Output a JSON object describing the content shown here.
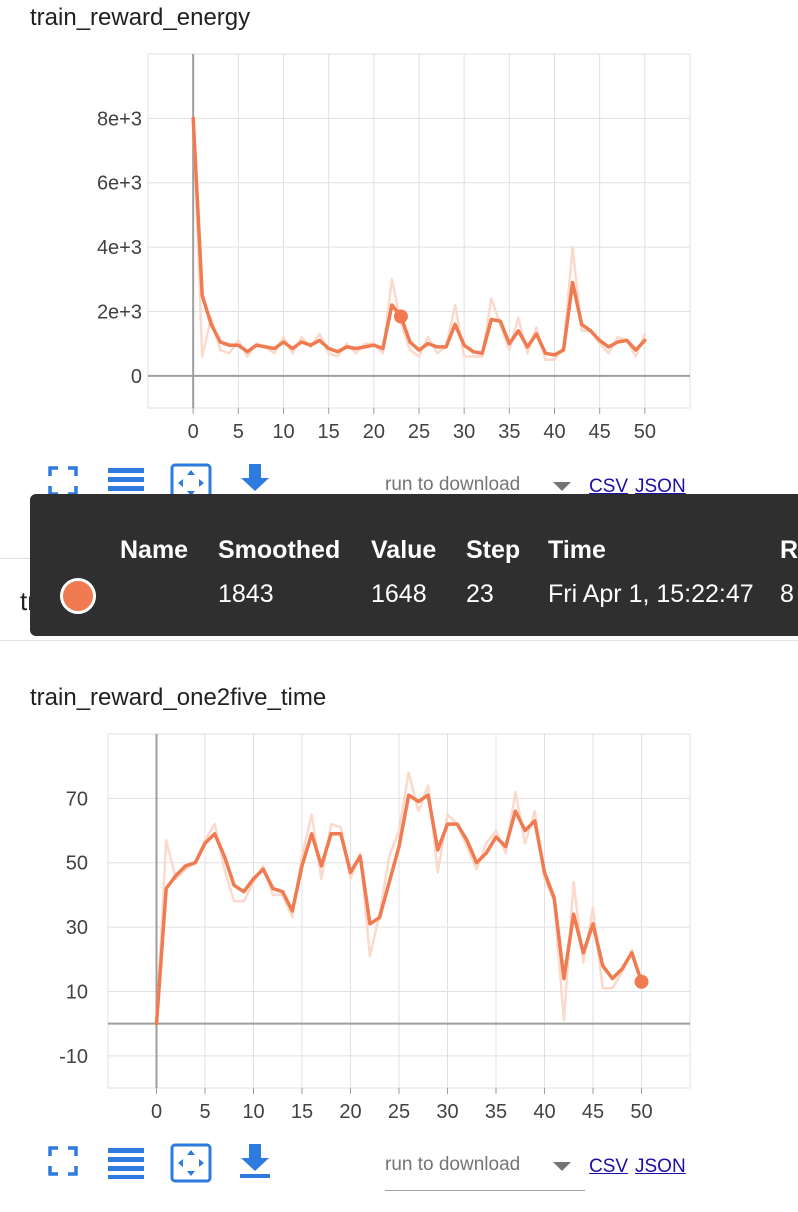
{
  "charts": [
    {
      "title": "train_reward_energy",
      "toolbar": {
        "download_placeholder": "run to download",
        "csv_label": "CSV",
        "json_label": "JSON"
      }
    },
    {
      "title": "train_reward_one2five_time",
      "toolbar": {
        "download_placeholder": "run to download",
        "csv_label": "CSV",
        "json_label": "JSON"
      }
    }
  ],
  "ghost_title": "train_reward_one2five_time",
  "tooltip": {
    "headers": {
      "name": "Name",
      "smoothed": "Smoothed",
      "value": "Value",
      "step": "Step",
      "time": "Time",
      "relative": "R"
    },
    "row": {
      "smoothed": "1843",
      "value": "1648",
      "step": "23",
      "time": "Fri Apr 1, 15:22:47",
      "relative": "8"
    }
  },
  "colors": {
    "series": "#f07b50",
    "raw": "#fbd9cb",
    "grid": "#e0e0e0",
    "axis": "#9e9e9e",
    "icon": "#2e7be0"
  },
  "icons": [
    "fit-domain-icon",
    "toggle-log-scale-icon",
    "select-zoom-icon",
    "download-icon"
  ],
  "chart_data": [
    {
      "type": "line",
      "title": "train_reward_energy",
      "x": [
        0,
        1,
        2,
        3,
        4,
        5,
        6,
        7,
        8,
        9,
        10,
        11,
        12,
        13,
        14,
        15,
        16,
        17,
        18,
        19,
        20,
        21,
        22,
        23,
        24,
        25,
        26,
        27,
        28,
        29,
        30,
        31,
        32,
        33,
        34,
        35,
        36,
        37,
        38,
        39,
        40,
        41,
        42,
        43,
        44,
        45,
        46,
        47,
        48,
        49,
        50
      ],
      "xticks": [
        0,
        5,
        10,
        15,
        20,
        25,
        30,
        35,
        40,
        45,
        50
      ],
      "yticks": [
        0,
        2000,
        4000,
        6000,
        8000
      ],
      "ytick_labels": [
        "0",
        "2e+3",
        "4e+3",
        "6e+3",
        "8e+3"
      ],
      "xlim": [
        -5,
        55
      ],
      "ylim": [
        -1000,
        10000
      ],
      "grid": true,
      "series": [
        {
          "role": "smoothed",
          "values": [
            8000,
            2500,
            1600,
            1050,
            950,
            950,
            750,
            950,
            900,
            850,
            1050,
            850,
            1050,
            950,
            1100,
            850,
            750,
            900,
            850,
            900,
            950,
            850,
            2200,
            1843,
            1050,
            800,
            1000,
            900,
            900,
            1600,
            950,
            750,
            700,
            1750,
            1700,
            1000,
            1400,
            900,
            1300,
            700,
            650,
            800,
            2900,
            1600,
            1400,
            1100,
            900,
            1050,
            1100,
            800,
            1100
          ]
        },
        {
          "role": "raw",
          "values": [
            8000,
            600,
            1800,
            800,
            700,
            1100,
            600,
            1000,
            900,
            700,
            1200,
            700,
            1200,
            900,
            1300,
            700,
            600,
            1000,
            700,
            1000,
            1000,
            700,
            3000,
            1648,
            800,
            600,
            1200,
            700,
            900,
            2200,
            600,
            600,
            600,
            2400,
            1600,
            800,
            1800,
            700,
            1500,
            500,
            500,
            900,
            4000,
            1400,
            1400,
            1000,
            700,
            1200,
            1100,
            600,
            1300
          ]
        }
      ],
      "focus_point": {
        "x": 23,
        "y": 1843
      }
    },
    {
      "type": "line",
      "title": "train_reward_one2five_time",
      "x": [
        0,
        1,
        2,
        3,
        4,
        5,
        6,
        7,
        8,
        9,
        10,
        11,
        12,
        13,
        14,
        15,
        16,
        17,
        18,
        19,
        20,
        21,
        22,
        23,
        24,
        25,
        26,
        27,
        28,
        29,
        30,
        31,
        32,
        33,
        34,
        35,
        36,
        37,
        38,
        39,
        40,
        41,
        42,
        43,
        44,
        45,
        46,
        47,
        48,
        49,
        50
      ],
      "xticks": [
        0,
        5,
        10,
        15,
        20,
        25,
        30,
        35,
        40,
        45,
        50
      ],
      "yticks": [
        -10,
        10,
        30,
        50,
        70
      ],
      "ytick_labels": [
        "-10",
        "10",
        "30",
        "50",
        "70"
      ],
      "xlim": [
        -5,
        55
      ],
      "ylim": [
        -20,
        90
      ],
      "grid": true,
      "series": [
        {
          "role": "smoothed",
          "values": [
            0,
            42,
            46,
            49,
            50,
            56,
            59,
            52,
            43,
            41,
            45,
            48,
            42,
            41,
            35,
            49,
            59,
            49,
            59,
            59,
            47,
            52,
            31,
            33,
            44,
            55,
            71,
            69,
            71,
            54,
            62,
            62,
            57,
            50,
            53,
            58,
            55,
            66,
            60,
            63,
            47,
            39,
            14,
            34,
            22,
            31,
            18,
            14,
            17,
            22,
            13
          ]
        },
        {
          "role": "raw",
          "values": [
            0,
            57,
            45,
            48,
            50,
            57,
            62,
            48,
            38,
            38,
            44,
            49,
            40,
            40,
            33,
            52,
            65,
            45,
            62,
            61,
            45,
            53,
            21,
            34,
            52,
            60,
            78,
            66,
            74,
            47,
            65,
            62,
            55,
            48,
            56,
            60,
            53,
            72,
            56,
            66,
            45,
            38,
            1,
            44,
            19,
            36,
            11,
            11,
            16,
            23,
            13
          ]
        }
      ],
      "focus_point": {
        "x": 50,
        "y": 13
      }
    }
  ]
}
